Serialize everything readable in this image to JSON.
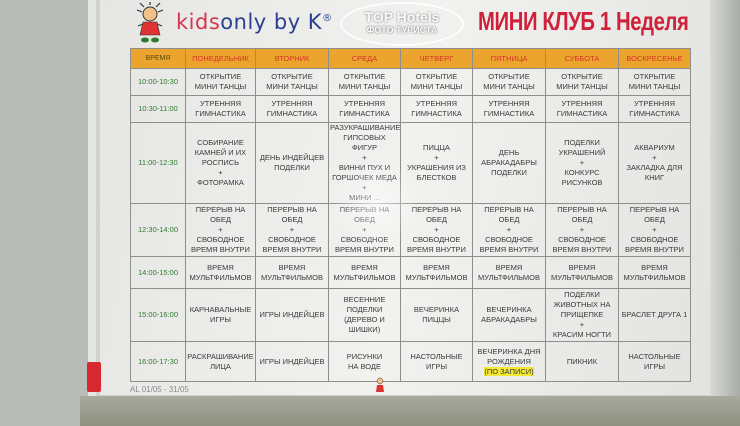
{
  "brand": {
    "logo_text_red": "kids",
    "logo_text_blue": "only by K",
    "logo_mark": "®"
  },
  "title": "МИНИ КЛУБ 1 Неделя",
  "watermark": {
    "line1": "TOP Hotels",
    "line2": "ФОТО ТУРИСТА"
  },
  "colors": {
    "header_bg": "#eba52f",
    "header_text": "#d9322a",
    "time_text": "#2f7a2f",
    "title": "#d0213a"
  },
  "schedule": {
    "headers": [
      "ВРЕМЯ",
      "ПОНЕДЕЛЬНИК",
      "ВТОРНИК",
      "СРЕДА",
      "ЧЕТВЕРГ",
      "ПЯТНИЦА",
      "СУББОТА",
      "ВОСКРЕСЕНЬЕ"
    ],
    "rows": [
      {
        "time": "10:00-10:30",
        "cells": [
          "ОТКРЫТИЕ\nМИНИ ТАНЦЫ",
          "ОТКРЫТИЕ\nМИНИ ТАНЦЫ",
          "ОТКРЫТИЕ\nМИНИ ТАНЦЫ",
          "ОТКРЫТИЕ\nМИНИ ТАНЦЫ",
          "ОТКРЫТИЕ\nМИНИ ТАНЦЫ",
          "ОТКРЫТИЕ\nМИНИ ТАНЦЫ",
          "ОТКРЫТИЕ\nМИНИ ТАНЦЫ"
        ]
      },
      {
        "time": "10:30-11:00",
        "cells": [
          "УТРЕННЯЯ\nГИМНАСТИКА",
          "УТРЕННЯЯ\nГИМНАСТИКА",
          "УТРЕННЯЯ\nГИМНАСТИКА",
          "УТРЕННЯЯ\nГИМНАСТИКА",
          "УТРЕННЯЯ\nГИМНАСТИКА",
          "УТРЕННЯЯ\nГИМНАСТИКА",
          "УТРЕННЯЯ\nГИМНАСТИКА"
        ]
      },
      {
        "time": "11:00-12:30",
        "cells": [
          "СОБИРАНИЕ\nКАМНЕЙ И ИХ\nРОСПИСЬ\n+\nФОТОРАМКА",
          "ДЕНЬ ИНДЕЙЦЕВ\nПОДЕЛКИ",
          "РАЗУКРАШИВАНИЕ\nГИПСОВЫХ ФИГУР\n+\nВИННИ ПУХ И\nГОРШОЧЕК МЕДА\n+\nМИНИ ...",
          "ПИЦЦА\n+\nУКРАШЕНИЯ ИЗ\nБЛЕСТКОВ",
          "ДЕНЬ\nАБРАКАДАБРЫ\nПОДЕЛКИ",
          "ПОДЕЛКИ\nУКРАШЕНИЙ\n+\nКОНКУРС\nРИСУНКОВ",
          "АКВАРИУМ\n+\nЗАКЛАДКА ДЛЯ\nКНИГ"
        ]
      },
      {
        "time": "12:30-14:00",
        "cells": [
          "ПЕРЕРЫВ НА\nОБЕД\n+\nСВОБОДНОЕ\nВРЕМЯ ВНУТРИ",
          "ПЕРЕРЫВ НА\nОБЕД\n+\nСВОБОДНОЕ\nВРЕМЯ ВНУТРИ",
          "ПЕРЕРЫВ НА\nОБЕД\n+\nСВОБОДНОЕ\nВРЕМЯ ВНУТРИ",
          "ПЕРЕРЫВ НА\nОБЕД\n+\nСВОБОДНОЕ\nВРЕМЯ ВНУТРИ",
          "ПЕРЕРЫВ НА\nОБЕД\n+\nСВОБОДНОЕ\nВРЕМЯ ВНУТРИ",
          "ПЕРЕРЫВ НА\nОБЕД\n+\nСВОБОДНОЕ\nВРЕМЯ ВНУТРИ",
          "ПЕРЕРЫВ НА\nОБЕД\n+\nСВОБОДНОЕ\nВРЕМЯ ВНУТРИ"
        ]
      },
      {
        "time": "14:00-15:00",
        "cells": [
          "ВРЕМЯ\nМУЛЬТФИЛЬМОВ",
          "ВРЕМЯ\nМУЛЬТФИЛЬМОВ",
          "ВРЕМЯ\nМУЛЬТФИЛЬМОВ",
          "ВРЕМЯ\nМУЛЬТФИЛЬМОВ",
          "ВРЕМЯ\nМУЛЬТФИЛЬМОВ",
          "ВРЕМЯ\nМУЛЬТФИЛЬМОВ",
          "ВРЕМЯ\nМУЛЬТФИЛЬМОВ"
        ]
      },
      {
        "time": "15:00-16:00",
        "cells": [
          "КАРНАВАЛЬНЫЕ\nИГРЫ",
          "ИГРЫ ИНДЕЙЦЕВ",
          "ВЕСЕННИЕ\nПОДЕЛКИ\n(ДЕРЕВО И\nШИШКИ)",
          "ВЕЧЕРИНКА\nПИЦЦЫ",
          "ВЕЧЕРИНКА\nАБРАКАДАБРЫ",
          "ПОДЕЛКИ\nЖИВОТНЫХ НА\nПРИЩЕПКЕ\n+\nКРАСИМ НОГТИ",
          "БРАСЛЕТ ДРУГА 1"
        ]
      },
      {
        "time": "16:00-17:30",
        "cells": [
          "РАСКРАШИВАНИЕ\nЛИЦА",
          "ИГРЫ ИНДЕЙЦЕВ",
          "РИСУНКИ\nНА ВОДЕ",
          "НАСТОЛЬНЫЕ\nИГРЫ",
          "ВЕЧЕРИНКА ДНЯ\nРОЖДЕНИЯ",
          "ПИКНИК",
          "НАСТОЛЬНЫЕ\nИГРЫ"
        ],
        "highlight_note": "(ПО ЗАПИСИ)"
      }
    ]
  },
  "footer": {
    "dates": "AL 01/05 - 31/05"
  }
}
